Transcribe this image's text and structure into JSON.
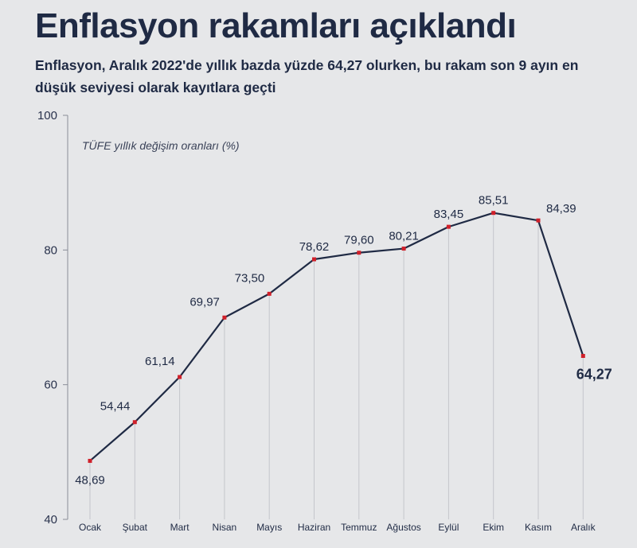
{
  "header": {
    "title": "Enflasyon rakamları açıklandı",
    "subtitle": "Enflasyon, Aralık 2022'de yıllık bazda yüzde 64,27 olurken, bu rakam son 9 ayın en düşük seviyesi olarak kayıtlara geçti"
  },
  "colors": {
    "background": "#e6e7e9",
    "line": "#1f2a44",
    "marker": "#d0202a",
    "grid": "#c4c6cb"
  },
  "chart_data": {
    "type": "line",
    "title": "Enflasyon rakamları açıklandı",
    "unit_label": "TÜFE yıllık değişim oranları (%)",
    "ylim": [
      40,
      100
    ],
    "yticks": [
      40,
      60,
      80,
      100
    ],
    "categories": [
      "Ocak",
      "Şubat",
      "Mart",
      "Nisan",
      "Mayıs",
      "Haziran",
      "Temmuz",
      "Ağustos",
      "Eylül",
      "Ekim",
      "Kasım",
      "Aralık"
    ],
    "values": [
      48.69,
      54.44,
      61.14,
      69.97,
      73.5,
      78.62,
      79.6,
      80.21,
      83.45,
      85.51,
      84.39,
      64.27
    ],
    "value_labels": [
      "48,69",
      "54,44",
      "61,14",
      "69,97",
      "73,50",
      "78,62",
      "79,60",
      "80,21",
      "83,45",
      "85,51",
      "84,39",
      "64,27"
    ],
    "label_positions": [
      "below",
      "above-left",
      "above-left",
      "above-left",
      "above-left",
      "above",
      "above",
      "above",
      "above",
      "above",
      "above-right",
      "below"
    ]
  }
}
